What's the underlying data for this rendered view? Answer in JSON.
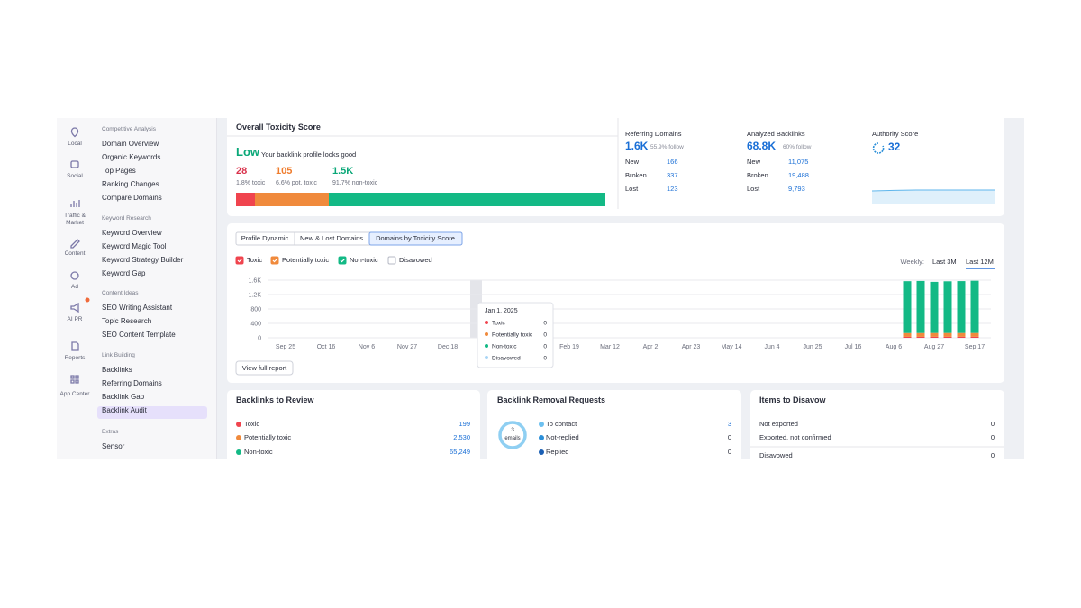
{
  "sidebar": {
    "icons": [
      "Local",
      "Social",
      "Traffic & Market",
      "Content",
      "Ad",
      "AI PR",
      "Reports",
      "App Center"
    ],
    "sections": [
      {
        "title": "Competitive Analysis",
        "items": [
          "Domain Overview",
          "Organic Keywords",
          "Top Pages",
          "Ranking Changes",
          "Compare Domains"
        ]
      },
      {
        "title": "Keyword Research",
        "items": [
          "Keyword Overview",
          "Keyword Magic Tool",
          "Keyword Strategy Builder",
          "Keyword Gap"
        ]
      },
      {
        "title": "Content Ideas",
        "items": [
          "SEO Writing Assistant",
          "Topic Research",
          "SEO Content Template"
        ]
      },
      {
        "title": "Link Building",
        "items": [
          "Backlinks",
          "Referring Domains",
          "Backlink Gap",
          "Backlink Audit"
        ]
      },
      {
        "title": "Extras",
        "items": [
          "Sensor"
        ]
      }
    ]
  },
  "toxicity": {
    "title": "Overall Toxicity Score",
    "level": "Low",
    "message": "Your backlink profile looks good",
    "stats": [
      {
        "value": "28",
        "label": "1.8% toxic"
      },
      {
        "value": "105",
        "label": "6.6% pot. toxic"
      },
      {
        "value": "1.5K",
        "label": "91.7% non-toxic"
      }
    ]
  },
  "referring_domains": {
    "title": "Referring Domains",
    "value": "1.6K",
    "note": "55.9% follow",
    "rows": [
      [
        "New",
        "166"
      ],
      [
        "Broken",
        "337"
      ],
      [
        "Lost",
        "123"
      ]
    ]
  },
  "analyzed_backlinks": {
    "title": "Analyzed Backlinks",
    "value": "68.8K",
    "note": "60% follow",
    "rows": [
      [
        "New",
        "11,075"
      ],
      [
        "Broken",
        "19,488"
      ],
      [
        "Lost",
        "9,793"
      ]
    ]
  },
  "authority_score": {
    "title": "Authority Score",
    "value": "32"
  },
  "tabs": [
    "Profile Dynamic",
    "New & Lost Domains",
    "Domains by Toxicity Score"
  ],
  "period": {
    "label": "Weekly:",
    "options": [
      "Last 3M",
      "Last 12M"
    ]
  },
  "chart_data": {
    "type": "bar",
    "stacked": true,
    "categories": [
      "Sep 25",
      null,
      null,
      "Oct 16",
      null,
      null,
      "Nov 6",
      null,
      null,
      "Nov 27",
      null,
      null,
      "Dec 18",
      null,
      null,
      null,
      null,
      null,
      null,
      null,
      null,
      "Feb 19",
      null,
      null,
      "Mar 12",
      null,
      null,
      "Apr 2",
      null,
      null,
      "Apr 23",
      null,
      null,
      "May 14",
      null,
      null,
      "Jun 4",
      null,
      null,
      "Jun 25",
      null,
      null,
      "Jul 16",
      null,
      null,
      "Aug 6",
      null,
      null,
      "Aug 27",
      null,
      null,
      "Sep 17"
    ],
    "series": [
      {
        "name": "Toxic",
        "color": "#f0444e",
        "values": [
          0,
          0,
          0,
          0,
          0,
          0,
          0,
          0,
          0,
          0,
          0,
          0,
          0,
          0,
          0,
          0,
          0,
          0,
          0,
          0,
          0,
          0,
          0,
          0,
          0,
          0,
          0,
          0,
          0,
          0,
          0,
          0,
          0,
          0,
          0,
          0,
          0,
          0,
          0,
          0,
          0,
          0,
          0,
          0,
          0,
          0,
          27,
          27,
          28,
          28,
          28,
          28
        ]
      },
      {
        "name": "Potentially toxic",
        "color": "#f08a3c",
        "values": [
          0,
          0,
          0,
          0,
          0,
          0,
          0,
          0,
          0,
          0,
          0,
          0,
          0,
          0,
          0,
          0,
          0,
          0,
          0,
          0,
          0,
          0,
          0,
          0,
          0,
          0,
          0,
          0,
          0,
          0,
          0,
          0,
          0,
          0,
          0,
          0,
          0,
          0,
          0,
          0,
          0,
          0,
          0,
          0,
          0,
          0,
          104,
          105,
          105,
          105,
          105,
          105
        ]
      },
      {
        "name": "Non-toxic",
        "color": "#13b985",
        "values": [
          0,
          0,
          0,
          0,
          0,
          0,
          0,
          0,
          0,
          0,
          0,
          0,
          0,
          0,
          0,
          0,
          0,
          0,
          0,
          0,
          0,
          0,
          0,
          0,
          0,
          0,
          0,
          0,
          0,
          0,
          0,
          0,
          0,
          0,
          0,
          0,
          0,
          0,
          0,
          0,
          0,
          0,
          0,
          0,
          0,
          0,
          1440,
          1445,
          1420,
          1435,
          1440,
          1450
        ]
      },
      {
        "name": "Disavowed",
        "color": "#a7d4f5",
        "values": [
          0,
          0,
          0,
          0,
          0,
          0,
          0,
          0,
          0,
          0,
          0,
          0,
          0,
          0,
          0,
          0,
          0,
          0,
          0,
          0,
          0,
          0,
          0,
          0,
          0,
          0,
          0,
          0,
          0,
          0,
          0,
          0,
          0,
          0,
          0,
          0,
          0,
          0,
          0,
          0,
          0,
          0,
          0,
          0,
          0,
          0,
          0,
          0,
          0,
          0,
          0,
          0
        ]
      }
    ],
    "ylim": [
      0,
      1600
    ],
    "yticks": [
      0,
      400,
      800,
      {
        "value": 1200,
        "label": "1.2K"
      },
      {
        "value": 1600,
        "label": "1.6K"
      }
    ],
    "grid": true,
    "tooltip": {
      "title": "Jan 1, 2025"
    }
  },
  "view_full_report": "View full report",
  "review": {
    "title": "Backlinks to Review",
    "rows": [
      [
        "Toxic",
        "199"
      ],
      [
        "Potentially toxic",
        "2,530"
      ],
      [
        "Non-toxic",
        "65,249"
      ]
    ]
  },
  "removal": {
    "title": "Backlink Removal Requests",
    "donut": [
      "3",
      "emails"
    ],
    "rows": [
      [
        "To contact",
        "3"
      ],
      [
        "Not-replied",
        "0"
      ],
      [
        "Replied",
        "0"
      ]
    ]
  },
  "disavow": {
    "title": "Items to Disavow",
    "rows": [
      [
        "Not exported",
        "0"
      ],
      [
        "Exported, not confirmed",
        "0"
      ],
      [
        "Disavowed",
        "0"
      ]
    ]
  }
}
